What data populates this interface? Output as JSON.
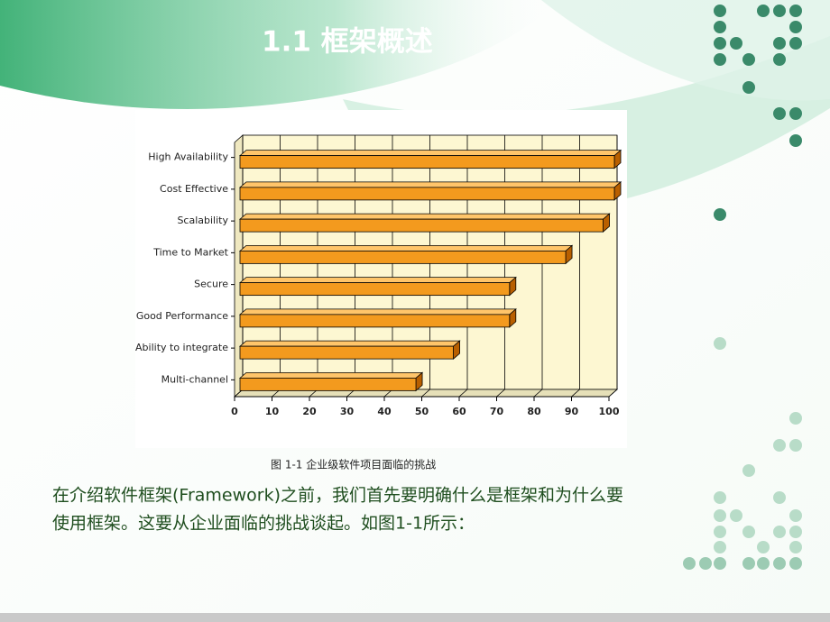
{
  "slide": {
    "title": "1.1 框架概述",
    "body": [
      "在介绍软件框架(Framework)之前，我们首先要明确什么是框架和为什么要",
      "使用框架。这要从企业面临的挑战谈起。如图1-1所示："
    ]
  },
  "chart_data": {
    "type": "bar",
    "orientation": "horizontal",
    "caption": "图 1-1 企业级软件项目面临的挑战",
    "categories": [
      "High Availability",
      "Cost Effective",
      "Scalability",
      "Time to Market",
      "Secure",
      "Good Performance",
      "Ability to integrate",
      "Multi-channel"
    ],
    "values": [
      100,
      100,
      97,
      87,
      72,
      72,
      57,
      47
    ],
    "color": "#f39a1e",
    "xlim": [
      0,
      100
    ],
    "xticks": [
      0,
      10,
      20,
      30,
      40,
      50,
      60,
      70,
      80,
      90,
      100
    ],
    "grid": true
  }
}
